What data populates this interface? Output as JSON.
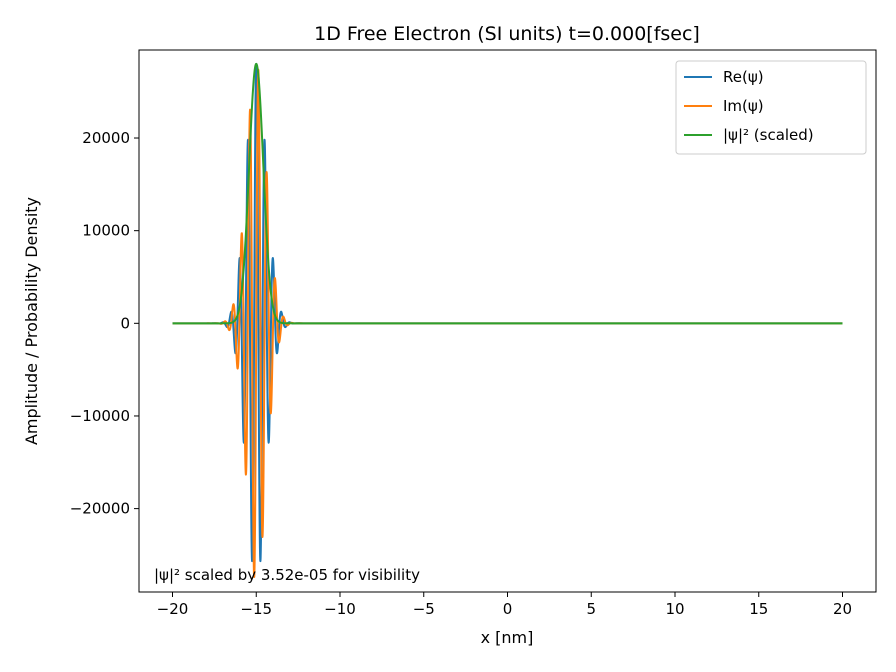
{
  "chart_data": {
    "type": "line",
    "title": "1D Free Electron (SI units)   t=0.000[fsec]",
    "xlabel": "x [nm]",
    "ylabel": "Amplitude / Probability Density",
    "xlim": [
      -22,
      22
    ],
    "ylim": [
      -29000,
      29500
    ],
    "xticks": [
      -20,
      -15,
      -10,
      -5,
      0,
      5,
      10,
      15,
      20
    ],
    "xtick_labels": [
      "−20",
      "−15",
      "−10",
      "−5",
      "0",
      "5",
      "10",
      "15",
      "20"
    ],
    "yticks": [
      -20000,
      -10000,
      0,
      10000,
      20000
    ],
    "ytick_labels": [
      "−20000",
      "−10000",
      "0",
      "10000",
      "20000"
    ],
    "grid": false,
    "legend_position": "top-right",
    "wavepacket": {
      "x_range": [
        -20,
        20
      ],
      "center_nm": -15,
      "sigma_nm": 0.6,
      "wavenumber_per_nm": 12.5,
      "amplitude": 28000,
      "prob_peak_scaled": 28000
    },
    "series": [
      {
        "name": "Re(ψ)",
        "color": "#1f77b4",
        "component": "real"
      },
      {
        "name": "Im(ψ)",
        "color": "#ff7f0e",
        "component": "imag"
      },
      {
        "name": "|ψ|² (scaled)",
        "color": "#2ca02c",
        "component": "prob"
      }
    ],
    "annotation": "|ψ|² scaled by 3.52e-05 for visibility"
  }
}
